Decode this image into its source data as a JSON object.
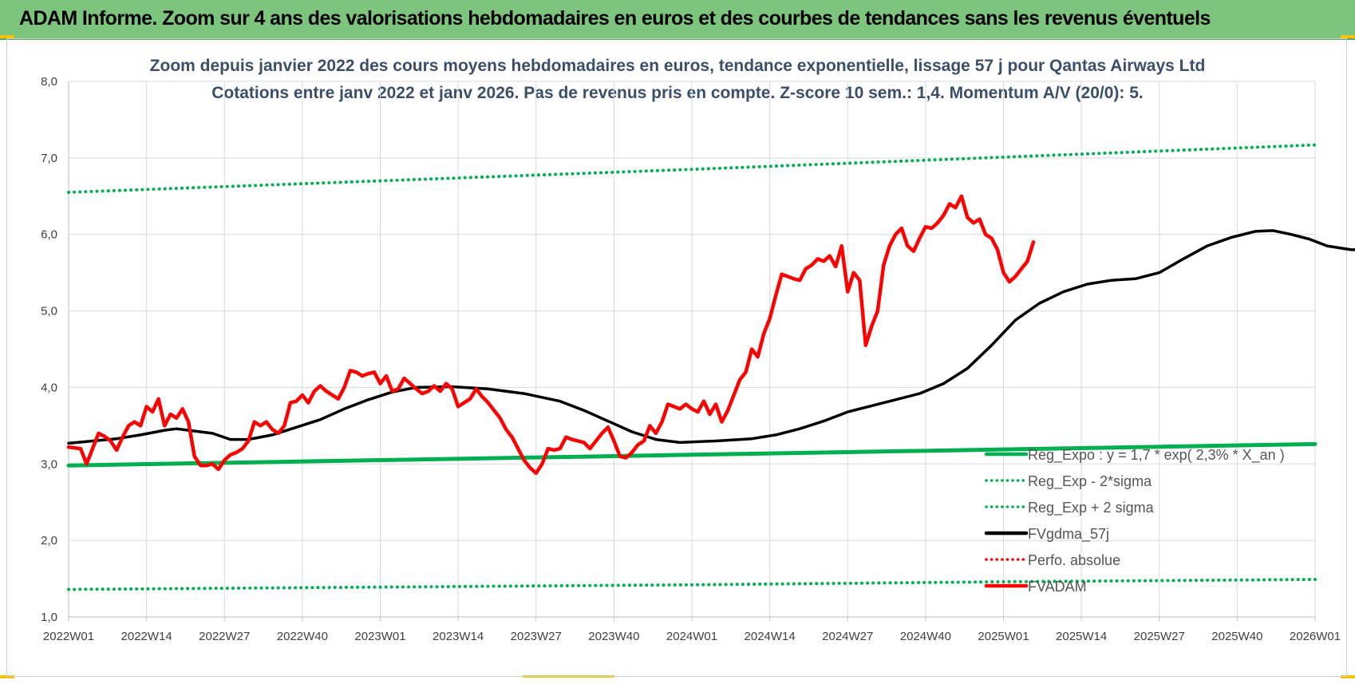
{
  "header": {
    "title": "ADAM Informe. Zoom sur 4 ans des valorisations hebdomadaires en euros et des courbes de tendances sans les revenus éventuels"
  },
  "colors": {
    "header_band": "#7dc47d",
    "regression": "#00b050",
    "smoothed": "#000000",
    "price": "#ff0000",
    "perf": "#ff0000"
  },
  "chart_data": {
    "type": "line",
    "title": "Zoom depuis janvier 2022 des cours moyens hebdomadaires en euros, tendance exponentielle, lissage 57 j pour Qantas Airways Ltd",
    "subtitle": "Cotations entre janv 2022 et janv 2026. Pas de revenus pris en compte. Z-score 10 sem.: 1,4. Momentum A/V (20/0): 5.",
    "x_ticks": [
      "2022W01",
      "2022W14",
      "2022W27",
      "2022W40",
      "2023W01",
      "2023W14",
      "2023W27",
      "2023W40",
      "2024W01",
      "2024W14",
      "2024W27",
      "2024W40",
      "2025W01",
      "2025W14",
      "2025W27",
      "2025W40",
      "2026W01"
    ],
    "y_ticks": [
      "1,0",
      "2,0",
      "3,0",
      "4,0",
      "5,0",
      "6,0",
      "7,0",
      "8,0"
    ],
    "ylim": [
      1,
      8
    ],
    "grid": true,
    "legend_position": "bottom-right",
    "series": [
      {
        "name": "Reg_Expo : y = 1,7 * exp( 2,3% *  X_an )",
        "style": "solid-thick",
        "color": "#00b050",
        "points": [
          [
            0,
            2.98
          ],
          [
            52,
            3.05
          ],
          [
            104,
            3.12
          ],
          [
            156,
            3.19
          ],
          [
            208,
            3.26
          ]
        ]
      },
      {
        "name": "Reg_Exp - 2*sigma",
        "style": "dotted",
        "color": "#00b050",
        "points": [
          [
            0,
            1.36
          ],
          [
            52,
            1.39
          ],
          [
            104,
            1.42
          ],
          [
            156,
            1.46
          ],
          [
            208,
            1.49
          ]
        ]
      },
      {
        "name": "Reg_Exp + 2 sigma",
        "style": "dotted",
        "color": "#00b050",
        "points": [
          [
            0,
            6.55
          ],
          [
            52,
            6.7
          ],
          [
            104,
            6.85
          ],
          [
            156,
            7.01
          ],
          [
            208,
            7.17
          ]
        ]
      },
      {
        "name": "FVgdma_57j",
        "style": "solid",
        "color": "#000000",
        "points": [
          [
            0,
            3.27
          ],
          [
            4,
            3.3
          ],
          [
            8,
            3.33
          ],
          [
            12,
            3.38
          ],
          [
            16,
            3.44
          ],
          [
            18,
            3.46
          ],
          [
            20,
            3.44
          ],
          [
            24,
            3.4
          ],
          [
            27,
            3.32
          ],
          [
            30,
            3.32
          ],
          [
            34,
            3.38
          ],
          [
            38,
            3.48
          ],
          [
            42,
            3.58
          ],
          [
            46,
            3.72
          ],
          [
            50,
            3.84
          ],
          [
            54,
            3.94
          ],
          [
            58,
            4.0
          ],
          [
            64,
            4.01
          ],
          [
            70,
            3.98
          ],
          [
            76,
            3.92
          ],
          [
            82,
            3.82
          ],
          [
            86,
            3.7
          ],
          [
            90,
            3.56
          ],
          [
            94,
            3.42
          ],
          [
            98,
            3.32
          ],
          [
            102,
            3.28
          ],
          [
            108,
            3.3
          ],
          [
            114,
            3.33
          ],
          [
            118,
            3.38
          ],
          [
            122,
            3.46
          ],
          [
            126,
            3.56
          ],
          [
            130,
            3.68
          ],
          [
            134,
            3.76
          ],
          [
            138,
            3.84
          ],
          [
            142,
            3.92
          ],
          [
            146,
            4.05
          ],
          [
            150,
            4.25
          ],
          [
            154,
            4.55
          ],
          [
            158,
            4.88
          ],
          [
            162,
            5.1
          ],
          [
            166,
            5.25
          ],
          [
            170,
            5.35
          ],
          [
            174,
            5.4
          ],
          [
            178,
            5.42
          ],
          [
            182,
            5.5
          ],
          [
            186,
            5.68
          ],
          [
            190,
            5.85
          ],
          [
            194,
            5.96
          ],
          [
            198,
            6.04
          ],
          [
            201,
            6.05
          ],
          [
            204,
            6.0
          ],
          [
            207,
            5.94
          ],
          [
            210,
            5.85
          ],
          [
            214,
            5.8
          ],
          [
            218,
            5.8
          ],
          [
            222,
            5.85
          ]
        ]
      },
      {
        "name": "Perfo. absolue",
        "style": "dotted",
        "color": "#ff0000",
        "points": []
      },
      {
        "name": "FVADAM",
        "style": "solid-thick",
        "color": "#ff0000",
        "points": [
          [
            0,
            3.22
          ],
          [
            2,
            3.2
          ],
          [
            3,
            3.0
          ],
          [
            4,
            3.2
          ],
          [
            5,
            3.4
          ],
          [
            6,
            3.36
          ],
          [
            7,
            3.3
          ],
          [
            8,
            3.18
          ],
          [
            9,
            3.35
          ],
          [
            10,
            3.5
          ],
          [
            11,
            3.55
          ],
          [
            12,
            3.5
          ],
          [
            13,
            3.75
          ],
          [
            14,
            3.68
          ],
          [
            15,
            3.85
          ],
          [
            16,
            3.5
          ],
          [
            17,
            3.65
          ],
          [
            18,
            3.6
          ],
          [
            19,
            3.72
          ],
          [
            20,
            3.55
          ],
          [
            21,
            3.1
          ],
          [
            22,
            2.98
          ],
          [
            23,
            2.98
          ],
          [
            24,
            3.0
          ],
          [
            25,
            2.93
          ],
          [
            26,
            3.05
          ],
          [
            27,
            3.12
          ],
          [
            28,
            3.15
          ],
          [
            29,
            3.2
          ],
          [
            30,
            3.3
          ],
          [
            31,
            3.55
          ],
          [
            32,
            3.5
          ],
          [
            33,
            3.55
          ],
          [
            34,
            3.45
          ],
          [
            35,
            3.4
          ],
          [
            36,
            3.5
          ],
          [
            37,
            3.8
          ],
          [
            38,
            3.82
          ],
          [
            39,
            3.9
          ],
          [
            40,
            3.8
          ],
          [
            41,
            3.95
          ],
          [
            42,
            4.02
          ],
          [
            43,
            3.95
          ],
          [
            44,
            3.9
          ],
          [
            45,
            3.85
          ],
          [
            46,
            4.0
          ],
          [
            47,
            4.22
          ],
          [
            48,
            4.2
          ],
          [
            49,
            4.15
          ],
          [
            50,
            4.18
          ],
          [
            51,
            4.2
          ],
          [
            52,
            4.05
          ],
          [
            53,
            4.15
          ],
          [
            54,
            3.95
          ],
          [
            55,
            3.98
          ],
          [
            56,
            4.12
          ],
          [
            57,
            4.05
          ],
          [
            58,
            3.98
          ],
          [
            59,
            3.92
          ],
          [
            60,
            3.95
          ],
          [
            61,
            4.02
          ],
          [
            62,
            3.95
          ],
          [
            63,
            4.05
          ],
          [
            64,
            3.98
          ],
          [
            65,
            3.75
          ],
          [
            66,
            3.8
          ],
          [
            67,
            3.85
          ],
          [
            68,
            3.98
          ],
          [
            69,
            3.88
          ],
          [
            70,
            3.8
          ],
          [
            71,
            3.7
          ],
          [
            72,
            3.6
          ],
          [
            73,
            3.45
          ],
          [
            74,
            3.35
          ],
          [
            75,
            3.2
          ],
          [
            76,
            3.05
          ],
          [
            77,
            2.95
          ],
          [
            78,
            2.88
          ],
          [
            79,
            3.0
          ],
          [
            80,
            3.2
          ],
          [
            81,
            3.18
          ],
          [
            82,
            3.2
          ],
          [
            83,
            3.35
          ],
          [
            84,
            3.32
          ],
          [
            85,
            3.3
          ],
          [
            86,
            3.28
          ],
          [
            87,
            3.2
          ],
          [
            88,
            3.3
          ],
          [
            89,
            3.4
          ],
          [
            90,
            3.48
          ],
          [
            91,
            3.3
          ],
          [
            92,
            3.1
          ],
          [
            93,
            3.08
          ],
          [
            94,
            3.15
          ],
          [
            95,
            3.25
          ],
          [
            96,
            3.3
          ],
          [
            97,
            3.5
          ],
          [
            98,
            3.4
          ],
          [
            99,
            3.55
          ],
          [
            100,
            3.78
          ],
          [
            101,
            3.75
          ],
          [
            102,
            3.72
          ],
          [
            103,
            3.78
          ],
          [
            104,
            3.72
          ],
          [
            105,
            3.68
          ],
          [
            106,
            3.82
          ],
          [
            107,
            3.65
          ],
          [
            108,
            3.78
          ],
          [
            109,
            3.55
          ],
          [
            110,
            3.7
          ],
          [
            111,
            3.9
          ],
          [
            112,
            4.1
          ],
          [
            113,
            4.2
          ],
          [
            114,
            4.5
          ],
          [
            115,
            4.4
          ],
          [
            116,
            4.7
          ],
          [
            117,
            4.9
          ],
          [
            118,
            5.2
          ],
          [
            119,
            5.48
          ],
          [
            120,
            5.45
          ],
          [
            121,
            5.42
          ],
          [
            122,
            5.4
          ],
          [
            123,
            5.55
          ],
          [
            124,
            5.6
          ],
          [
            125,
            5.68
          ],
          [
            126,
            5.65
          ],
          [
            127,
            5.72
          ],
          [
            128,
            5.58
          ],
          [
            129,
            5.85
          ],
          [
            130,
            5.25
          ],
          [
            131,
            5.5
          ],
          [
            132,
            5.4
          ],
          [
            133,
            4.55
          ],
          [
            134,
            4.8
          ],
          [
            135,
            5.0
          ],
          [
            136,
            5.6
          ],
          [
            137,
            5.85
          ],
          [
            138,
            6.0
          ],
          [
            139,
            6.08
          ],
          [
            140,
            5.85
          ],
          [
            141,
            5.78
          ],
          [
            142,
            5.95
          ],
          [
            143,
            6.1
          ],
          [
            144,
            6.08
          ],
          [
            145,
            6.15
          ],
          [
            146,
            6.25
          ],
          [
            147,
            6.4
          ],
          [
            148,
            6.35
          ],
          [
            149,
            6.5
          ],
          [
            150,
            6.22
          ],
          [
            151,
            6.15
          ],
          [
            152,
            6.2
          ],
          [
            153,
            6.0
          ],
          [
            154,
            5.95
          ],
          [
            155,
            5.8
          ],
          [
            156,
            5.5
          ],
          [
            157,
            5.38
          ],
          [
            158,
            5.45
          ],
          [
            159,
            5.55
          ],
          [
            160,
            5.65
          ],
          [
            161,
            5.9
          ]
        ]
      }
    ]
  }
}
